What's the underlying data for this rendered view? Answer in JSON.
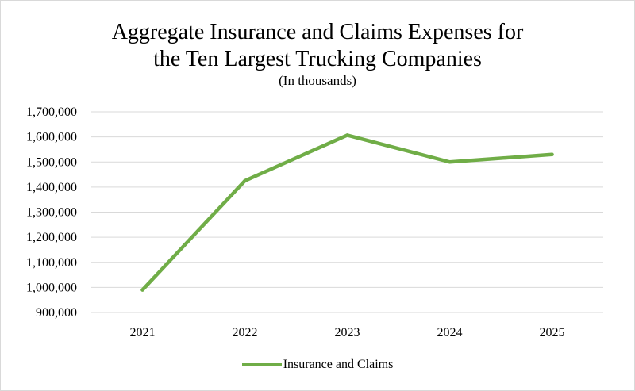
{
  "chart_data": {
    "type": "line",
    "title_line1": "Aggregate Insurance and Claims Expenses for",
    "title_line2": "the Ten Largest Trucking Companies",
    "subtitle": "(In thousands)",
    "categories": [
      "2021",
      "2022",
      "2023",
      "2024",
      "2025"
    ],
    "series": [
      {
        "name": "Insurance and Claims",
        "values": [
          990000,
          1425000,
          1607000,
          1500000,
          1530000
        ],
        "color": "#70ad47"
      }
    ],
    "ylim": [
      900000,
      1700000
    ],
    "y_ticks": [
      900000,
      1000000,
      1100000,
      1200000,
      1300000,
      1400000,
      1500000,
      1600000,
      1700000
    ],
    "y_tick_labels": [
      "900,000",
      "1,000,000",
      "1,100,000",
      "1,200,000",
      "1,300,000",
      "1,400,000",
      "1,500,000",
      "1,600,000",
      "1,700,000"
    ],
    "grid": true,
    "legend_position": "bottom"
  }
}
